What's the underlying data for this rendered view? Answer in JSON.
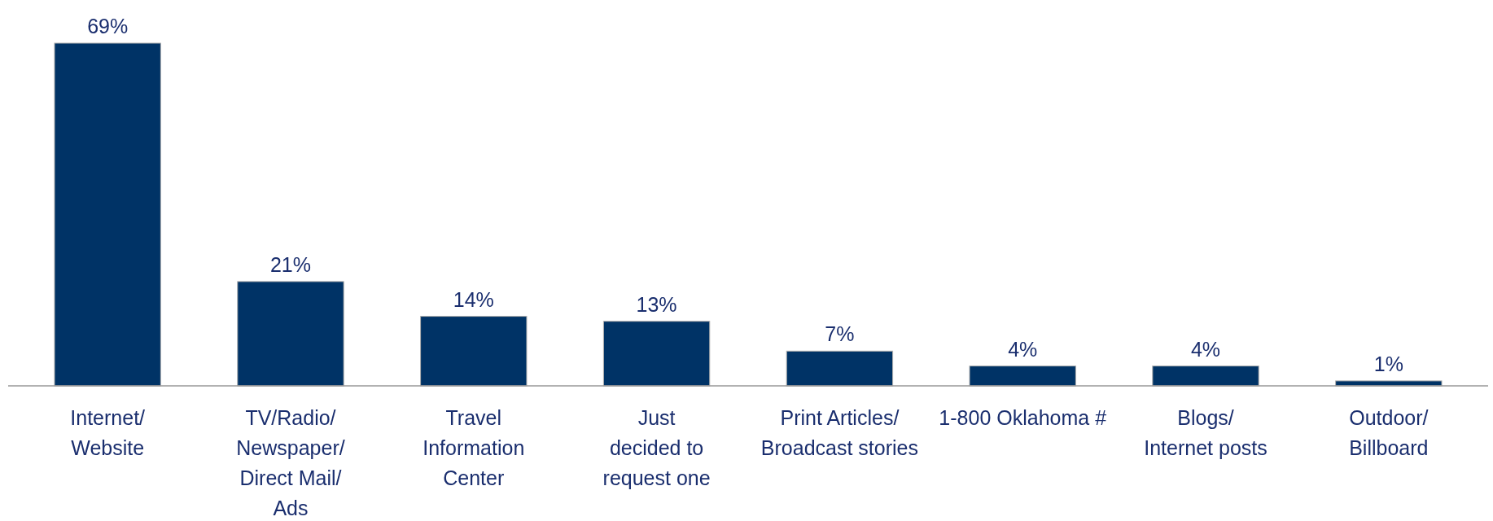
{
  "chart_data": {
    "type": "bar",
    "categories": [
      "Internet/\nWebsite",
      "TV/Radio/\nNewspaper/\nDirect Mail/\nAds",
      "Travel\nInformation\nCenter",
      "Just\ndecided to\nrequest one",
      "Print Articles/\nBroadcast stories",
      "1-800 Oklahoma #",
      "Blogs/\nInternet posts",
      "Outdoor/\nBillboard"
    ],
    "values": [
      69,
      21,
      14,
      13,
      7,
      4,
      4,
      1
    ],
    "value_labels": [
      "69%",
      "21%",
      "14%",
      "13%",
      "7%",
      "4%",
      "4%",
      "1%"
    ],
    "color": "#003366"
  }
}
